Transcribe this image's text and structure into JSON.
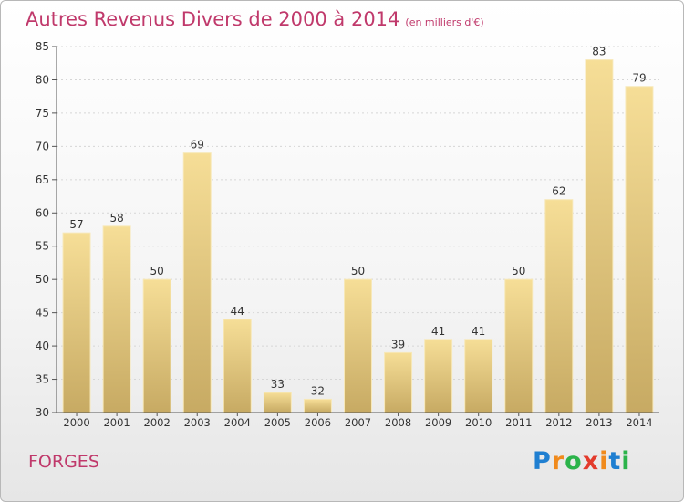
{
  "header": {
    "title": "Autres Revenus Divers de 2000 à 2014",
    "unit": "(en milliers d'€)"
  },
  "place": "FORGES",
  "brand": {
    "letters": [
      "P",
      "r",
      "o",
      "x",
      "i",
      "t",
      "i"
    ],
    "colors": [
      "#1f7fd1",
      "#f08a1c",
      "#2bb34a",
      "#e33b2c",
      "#f08a1c",
      "#1f7fd1",
      "#2bb34a"
    ]
  },
  "chart_data": {
    "type": "bar",
    "title": "Autres Revenus Divers de 2000 à 2014",
    "subtitle": "(en milliers d'€)",
    "xlabel": "",
    "ylabel": "",
    "ylim": [
      30,
      85
    ],
    "yticks": [
      30,
      35,
      40,
      45,
      50,
      55,
      60,
      65,
      70,
      75,
      80,
      85
    ],
    "categories": [
      "2000",
      "2001",
      "2002",
      "2003",
      "2004",
      "2005",
      "2006",
      "2007",
      "2008",
      "2009",
      "2010",
      "2011",
      "2012",
      "2013",
      "2014"
    ],
    "values": [
      57,
      58,
      50,
      69,
      44,
      33,
      32,
      50,
      39,
      41,
      41,
      50,
      62,
      83,
      79
    ],
    "grid": true,
    "bar_color": "#e7cc85"
  }
}
